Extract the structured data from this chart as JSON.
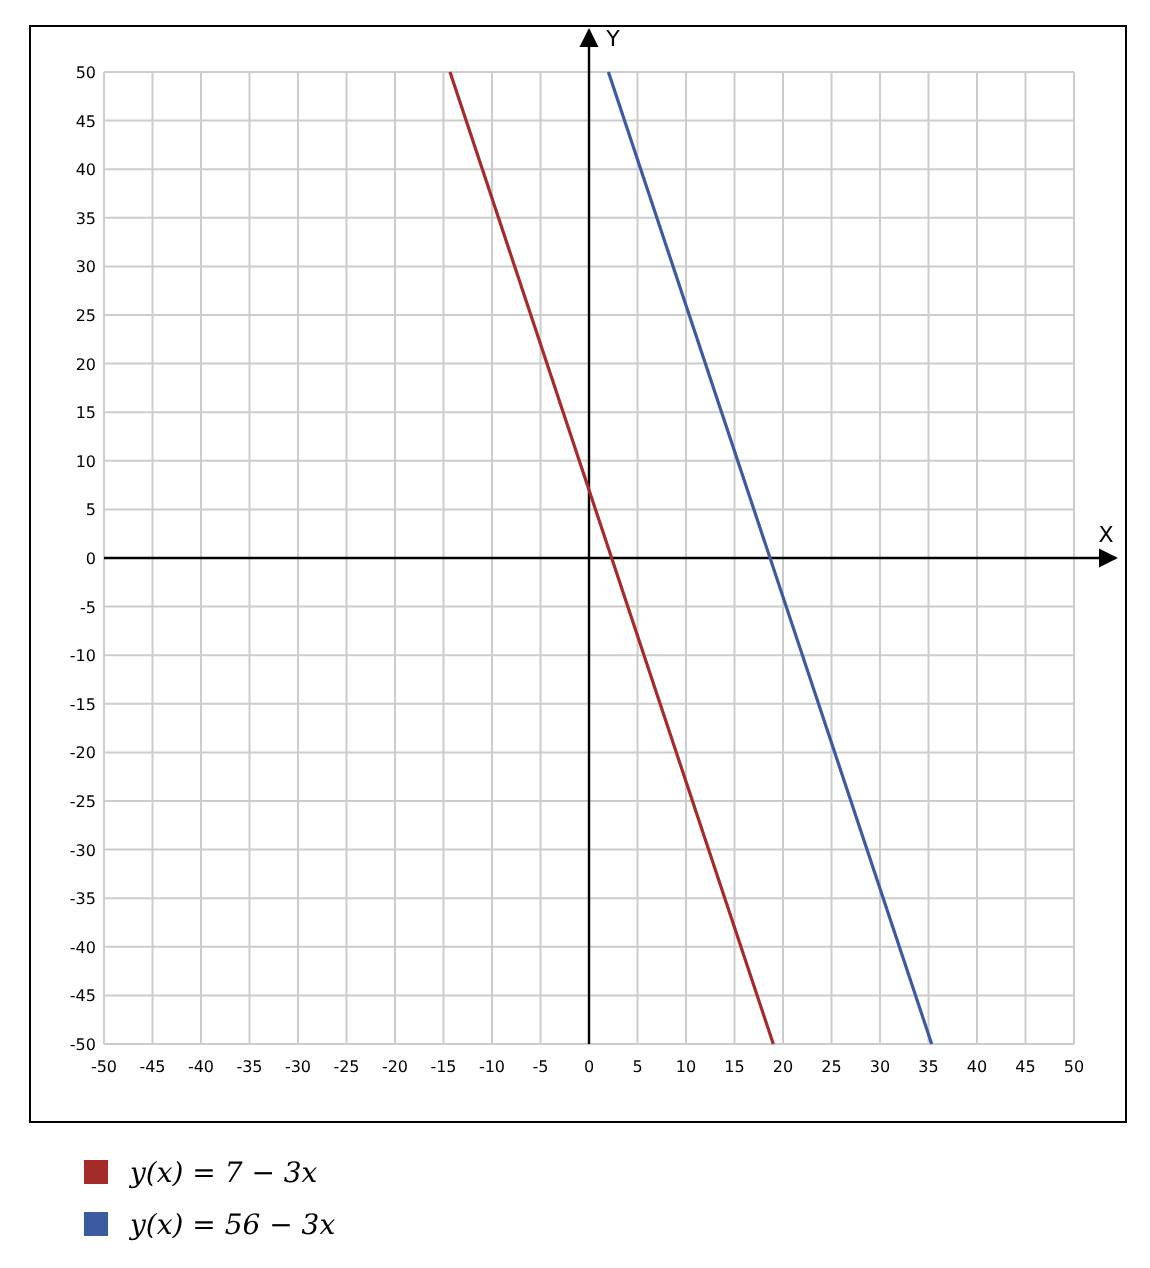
{
  "chart_data": {
    "type": "line",
    "xlabel": "X",
    "ylabel": "Y",
    "xlim": [
      -50,
      50
    ],
    "ylim": [
      -50,
      50
    ],
    "xticks": [
      -50,
      -45,
      -40,
      -35,
      -30,
      -25,
      -20,
      -15,
      -10,
      -5,
      0,
      5,
      10,
      15,
      20,
      25,
      30,
      35,
      40,
      45,
      50
    ],
    "yticks": [
      -50,
      -45,
      -40,
      -35,
      -30,
      -25,
      -20,
      -15,
      -10,
      -5,
      0,
      5,
      10,
      15,
      20,
      25,
      30,
      35,
      40,
      45,
      50
    ],
    "grid": true,
    "legend": "bottom",
    "series": [
      {
        "name": "y(x) = 7 − 3x",
        "color": "#a52a2a",
        "x": [
          -14.33,
          19
        ],
        "values": [
          50,
          -50
        ]
      },
      {
        "name": "y(x) = 56 − 3x",
        "color": "#3a5ba0",
        "x": [
          2,
          35.33
        ],
        "values": [
          50,
          -50
        ]
      }
    ]
  }
}
